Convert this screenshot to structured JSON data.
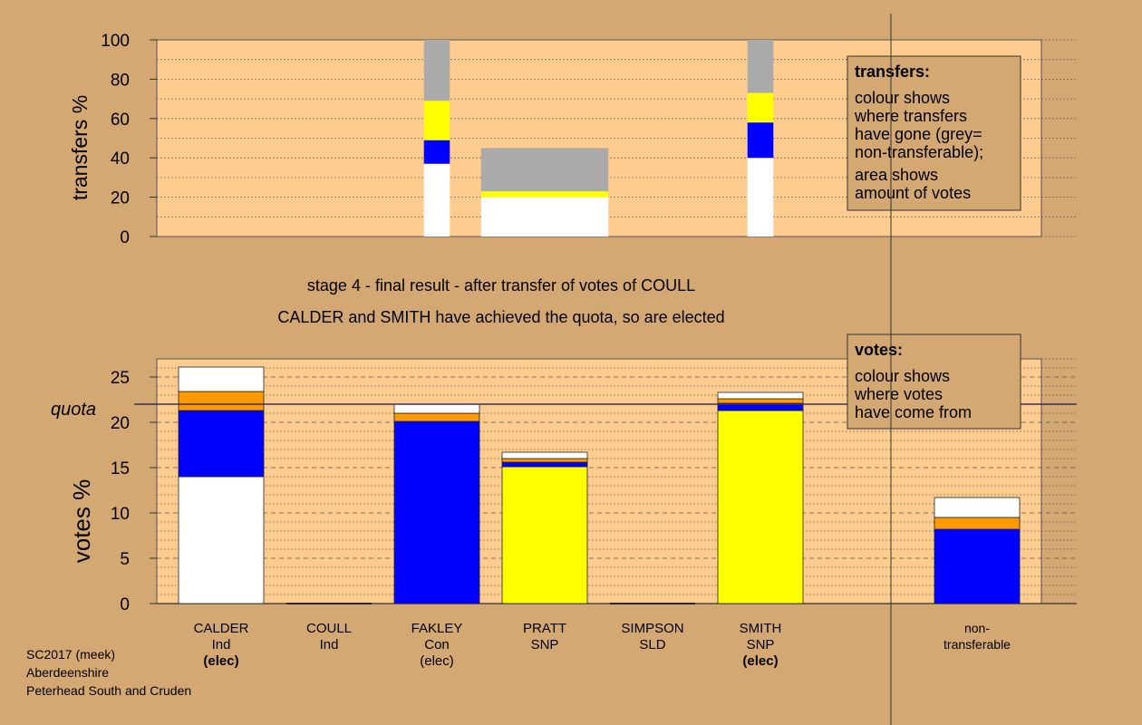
{
  "page": {
    "stage_title": "stage 4 - final result - after transfer of votes of COULL",
    "stage_subtitle": "CALDER and SMITH have achieved the quota, so are elected",
    "footer": [
      "SC2017 (meek)",
      "Aberdeenshire",
      "Peterhead South and Cruden"
    ]
  },
  "colors": {
    "background": "#d4a873",
    "plot_bg": "#ffcc8f",
    "white": "#ffffff",
    "blue": "#0000ff",
    "orange": "#ff9900",
    "yellow": "#ffff00",
    "grey": "#aaaaaa"
  },
  "transfers_legend": {
    "title": "transfers:",
    "line1": [
      "colour shows",
      "where transfers",
      "have gone (grey=",
      "non-transferable);"
    ],
    "line2": [
      "area shows",
      "amount of votes"
    ]
  },
  "votes_legend": {
    "title": "votes:",
    "lines": [
      "colour shows",
      "where votes",
      "have come from"
    ]
  },
  "chart_data": [
    {
      "type": "bar",
      "name": "transfers",
      "ylabel": "transfers %",
      "ylim": [
        0,
        100
      ],
      "yticks": [
        0,
        20,
        40,
        60,
        80,
        100
      ],
      "grid": "dotted",
      "bars": [
        {
          "x_center": 3.0,
          "width": 0.2,
          "segments": [
            {
              "color": "white",
              "value": 37
            },
            {
              "color": "blue",
              "value": 12
            },
            {
              "color": "yellow",
              "value": 20
            },
            {
              "color": "grey",
              "value": 31
            }
          ]
        },
        {
          "x_center": 4.0,
          "width": 1.0,
          "segments": [
            {
              "color": "white",
              "value": 20
            },
            {
              "color": "yellow",
              "value": 3
            },
            {
              "color": "grey",
              "value": 22
            }
          ]
        },
        {
          "x_center": 6.0,
          "width": 0.2,
          "segments": [
            {
              "color": "white",
              "value": 40
            },
            {
              "color": "blue",
              "value": 18
            },
            {
              "color": "yellow",
              "value": 15
            },
            {
              "color": "grey",
              "value": 27
            }
          ]
        }
      ]
    },
    {
      "type": "bar",
      "name": "votes",
      "ylabel": "votes %",
      "ylim": [
        0,
        27
      ],
      "yticks": [
        0,
        5,
        10,
        15,
        20,
        25
      ],
      "quota": 22,
      "quota_label": "quota",
      "grid": "dashed",
      "categories": [
        {
          "name": "CALDER",
          "party": "Ind",
          "status": "(elec)",
          "status_bold": true
        },
        {
          "name": "COULL",
          "party": "Ind",
          "status": "",
          "status_bold": false
        },
        {
          "name": "FAKLEY",
          "party": "Con",
          "status": "(elec)",
          "status_bold": false
        },
        {
          "name": "PRATT",
          "party": "SNP",
          "status": "",
          "status_bold": false
        },
        {
          "name": "SIMPSON",
          "party": "SLD",
          "status": "",
          "status_bold": false
        },
        {
          "name": "SMITH",
          "party": "SNP",
          "status": "(elec)",
          "status_bold": true
        },
        {
          "name": "non-\ntransferable",
          "party": "",
          "status": "",
          "status_bold": false,
          "separate": true
        }
      ],
      "bars": [
        [
          {
            "color": "white",
            "value": 14.0
          },
          {
            "color": "blue",
            "value": 7.3
          },
          {
            "color": "orange",
            "value": 2.1
          },
          {
            "color": "white",
            "value": 2.7
          }
        ],
        [],
        [
          {
            "color": "blue",
            "value": 20.1
          },
          {
            "color": "orange",
            "value": 0.9
          },
          {
            "color": "white",
            "value": 1.0
          }
        ],
        [
          {
            "color": "yellow",
            "value": 15.1
          },
          {
            "color": "blue",
            "value": 0.5
          },
          {
            "color": "orange",
            "value": 0.4
          },
          {
            "color": "white",
            "value": 0.7
          }
        ],
        [],
        [
          {
            "color": "yellow",
            "value": 21.3
          },
          {
            "color": "blue",
            "value": 0.8
          },
          {
            "color": "orange",
            "value": 0.5
          },
          {
            "color": "white",
            "value": 0.7
          }
        ],
        [
          {
            "color": "blue",
            "value": 8.2
          },
          {
            "color": "orange",
            "value": 1.3
          },
          {
            "color": "white",
            "value": 2.2
          }
        ]
      ]
    }
  ]
}
